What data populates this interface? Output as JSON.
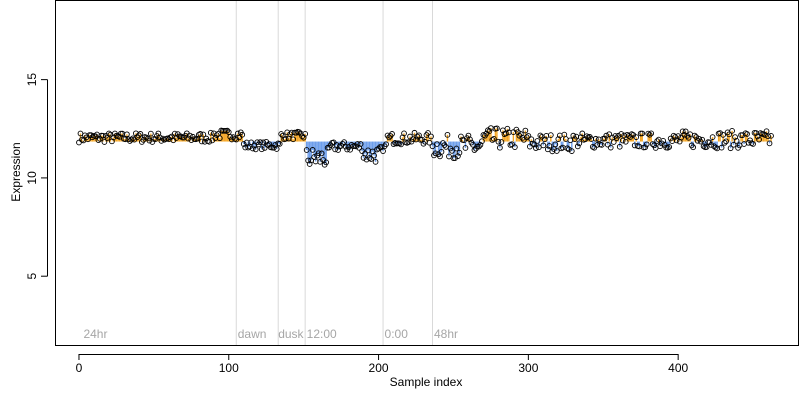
{
  "chart_data": {
    "type": "scatter",
    "title": "",
    "xlabel": "Sample index",
    "ylabel": "Expression",
    "xlim": [
      -16,
      480
    ],
    "ylim": [
      1.5,
      19
    ],
    "x_ticks": [
      0,
      100,
      200,
      300,
      400
    ],
    "y_ticks": [
      5,
      10,
      15
    ],
    "baseline": 11.85,
    "grid": false,
    "legend": "none",
    "colors": {
      "point_edge": "#000000",
      "above": "#f5a623",
      "below": "#6d9eeb",
      "vline": "#d9d9d9",
      "annotation": "#a6a6a6"
    },
    "phase_lines": [
      105,
      133,
      151,
      203,
      236
    ],
    "annotations": [
      {
        "x": 3,
        "label": "24hr"
      },
      {
        "x": 106,
        "label": "dawn"
      },
      {
        "x": 133,
        "label": "dusk"
      },
      {
        "x": 152,
        "label": "12:00"
      },
      {
        "x": 204,
        "label": "0:00"
      },
      {
        "x": 237,
        "label": "48hr"
      }
    ],
    "segments": [
      {
        "from": 0,
        "to": 90,
        "level": 12.05,
        "amp": 0.25
      },
      {
        "from": 90,
        "to": 110,
        "level": 12.2,
        "amp": 0.25
      },
      {
        "from": 110,
        "to": 135,
        "level": 11.65,
        "amp": 0.2
      },
      {
        "from": 135,
        "to": 152,
        "level": 12.15,
        "amp": 0.2
      },
      {
        "from": 152,
        "to": 168,
        "level": 11.0,
        "amp": 0.55
      },
      {
        "from": 168,
        "to": 190,
        "level": 11.6,
        "amp": 0.25
      },
      {
        "from": 190,
        "to": 205,
        "level": 11.2,
        "amp": 0.45
      },
      {
        "from": 205,
        "to": 235,
        "level": 12.0,
        "amp": 0.3
      },
      {
        "from": 235,
        "to": 270,
        "level": 11.6,
        "amp": 0.6
      },
      {
        "from": 270,
        "to": 300,
        "level": 12.0,
        "amp": 0.55
      },
      {
        "from": 300,
        "to": 330,
        "level": 11.8,
        "amp": 0.45
      },
      {
        "from": 330,
        "to": 400,
        "level": 11.9,
        "amp": 0.4
      },
      {
        "from": 400,
        "to": 462,
        "level": 11.95,
        "amp": 0.45
      }
    ],
    "n_points": 463
  }
}
